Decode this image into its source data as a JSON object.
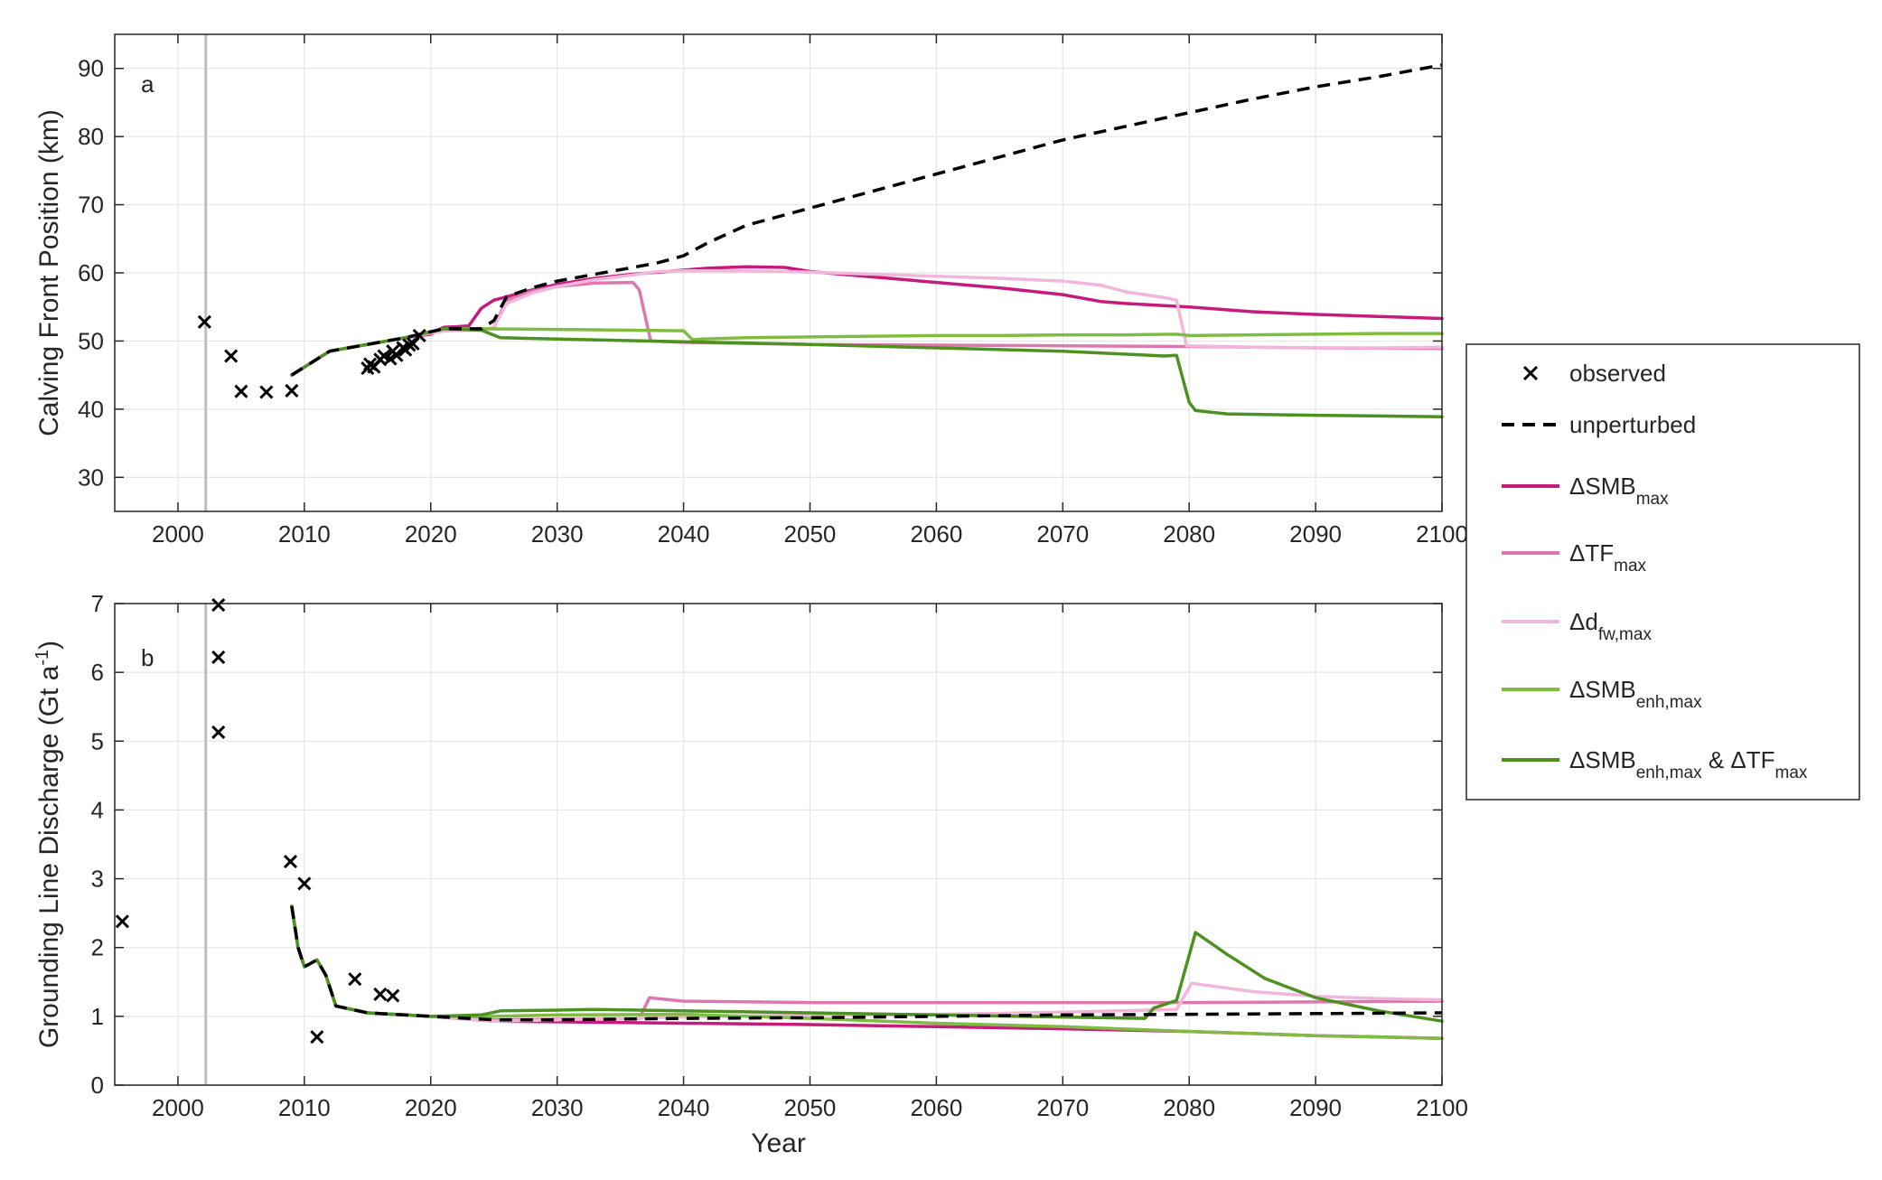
{
  "chart_data": [
    {
      "type": "line",
      "panel_label": "a",
      "xlabel": "",
      "ylabel": "Calving Front Position (km)",
      "xlim": [
        1995,
        2100
      ],
      "ylim": [
        25,
        95
      ],
      "xticks": [
        2000,
        2010,
        2020,
        2030,
        2040,
        2050,
        2060,
        2070,
        2080,
        2090,
        2100
      ],
      "yticks": [
        30,
        40,
        50,
        60,
        70,
        80,
        90
      ],
      "grid": true,
      "vertical_line_x": 2002.2,
      "observed": {
        "x": [
          2002.1,
          2004.2,
          2005.0,
          2007.0,
          2009.0,
          2015.0,
          2015.2,
          2015.5,
          2016.0,
          2016.3,
          2016.8,
          2017.0,
          2017.3,
          2017.8,
          2018.0,
          2018.3,
          2018.6,
          2019.1
        ],
        "y": [
          52.8,
          47.8,
          42.6,
          42.5,
          42.7,
          46.0,
          46.6,
          46.2,
          47.3,
          47.8,
          47.4,
          48.5,
          47.9,
          49.0,
          48.7,
          49.4,
          49.6,
          50.8
        ]
      },
      "series": [
        {
          "name": "unperturbed",
          "color": "#000000",
          "dash": true,
          "x": [
            2009,
            2012,
            2015,
            2018,
            2021,
            2024,
            2025,
            2026,
            2028,
            2030,
            2033,
            2036,
            2038,
            2040,
            2042,
            2045,
            2050,
            2055,
            2060,
            2065,
            2070,
            2075,
            2080,
            2085,
            2090,
            2095,
            2100
          ],
          "y": [
            45,
            48.5,
            49.5,
            50.5,
            51.8,
            51.8,
            53,
            56.5,
            57.8,
            58.8,
            59.8,
            60.8,
            61.5,
            62.5,
            64.5,
            67.0,
            69.5,
            72.0,
            74.5,
            77.0,
            79.5,
            81.5,
            83.5,
            85.5,
            87.3,
            88.8,
            90.5
          ]
        },
        {
          "name": "ΔSMB_max",
          "color": "#c51b7d",
          "dash": false,
          "x": [
            2009,
            2012,
            2015,
            2018,
            2020,
            2021,
            2023,
            2024,
            2025,
            2026,
            2028,
            2030,
            2033,
            2036,
            2038,
            2040,
            2042,
            2045,
            2048,
            2050,
            2055,
            2060,
            2065,
            2070,
            2073,
            2075,
            2080,
            2085,
            2090,
            2095,
            2100
          ],
          "y": [
            45,
            48.5,
            49.5,
            50.5,
            51,
            52,
            52.2,
            54.8,
            56,
            56.5,
            57.5,
            58.3,
            59.2,
            59.8,
            60.1,
            60.4,
            60.7,
            60.9,
            60.8,
            60.2,
            59.4,
            58.6,
            57.8,
            56.8,
            55.8,
            55.5,
            55.0,
            54.3,
            53.9,
            53.6,
            53.3
          ]
        },
        {
          "name": "ΔTF_max",
          "color": "#de77ae",
          "dash": false,
          "x": [
            2009,
            2012,
            2015,
            2018,
            2021,
            2024,
            2025,
            2026,
            2028,
            2030,
            2033,
            2036,
            2036.5,
            2037.4,
            2040,
            2050,
            2060,
            2070,
            2080,
            2090,
            2100
          ],
          "y": [
            45,
            48.5,
            49.5,
            50.5,
            51.5,
            51.6,
            52,
            56,
            57.3,
            58.0,
            58.5,
            58.6,
            57.5,
            50.0,
            49.8,
            49.5,
            49.4,
            49.3,
            49.2,
            49.0,
            48.9
          ]
        },
        {
          "name": "Δd_fw,max",
          "color": "#f1b6da",
          "dash": false,
          "x": [
            2009,
            2012,
            2015,
            2018,
            2021,
            2024,
            2025,
            2026,
            2028,
            2030,
            2033,
            2036,
            2038,
            2040,
            2045,
            2050,
            2055,
            2060,
            2065,
            2070,
            2073,
            2075,
            2078,
            2079,
            2079.8,
            2085,
            2090,
            2095,
            2100
          ],
          "y": [
            45,
            48.5,
            49.5,
            50.5,
            51.5,
            51.6,
            52,
            55.5,
            57,
            58,
            59,
            59.7,
            60.2,
            60.3,
            60.3,
            60.1,
            59.8,
            59.5,
            59.2,
            58.8,
            58.2,
            57.2,
            56.4,
            56.0,
            49.3,
            49.1,
            49.0,
            49.0,
            49.1
          ]
        },
        {
          "name": "ΔSMB_enh,max",
          "color": "#7fbc41",
          "dash": false,
          "x": [
            2009,
            2012,
            2015,
            2018,
            2021,
            2024,
            2030,
            2035,
            2040,
            2040.7,
            2041.5,
            2045,
            2050,
            2055,
            2060,
            2065,
            2070,
            2075,
            2079,
            2080,
            2085,
            2090,
            2095,
            2100
          ],
          "y": [
            45,
            48.5,
            49.5,
            50.5,
            51.8,
            51.8,
            51.7,
            51.6,
            51.5,
            50.2,
            50.3,
            50.5,
            50.6,
            50.7,
            50.8,
            50.8,
            50.9,
            50.9,
            51.0,
            50.8,
            50.9,
            51.0,
            51.1,
            51.1
          ]
        },
        {
          "name": "ΔSMB_enh,max & ΔTF_max",
          "color": "#4d9221",
          "dash": false,
          "x": [
            2009,
            2012,
            2015,
            2018,
            2021,
            2024,
            2025.5,
            2030,
            2040,
            2050,
            2060,
            2070,
            2078,
            2079,
            2080,
            2080.5,
            2083,
            2090,
            2095,
            2100
          ],
          "y": [
            45,
            48.5,
            49.5,
            50.5,
            51.8,
            51.6,
            50.5,
            50.3,
            49.9,
            49.5,
            49.0,
            48.5,
            47.8,
            47.9,
            41.0,
            39.8,
            39.3,
            39.1,
            39.0,
            38.9
          ]
        }
      ]
    },
    {
      "type": "line",
      "panel_label": "b",
      "xlabel": "Year",
      "ylabel": "Grounding Line Discharge (Gt a",
      "ylabel_sup": "-1",
      "ylabel_end": ")",
      "xlim": [
        1995,
        2100
      ],
      "ylim": [
        0,
        7
      ],
      "xticks": [
        2000,
        2010,
        2020,
        2030,
        2040,
        2050,
        2060,
        2070,
        2080,
        2090,
        2100
      ],
      "yticks": [
        0,
        1,
        2,
        3,
        4,
        5,
        6,
        7
      ],
      "grid": true,
      "vertical_line_x": 2002.2,
      "observed": {
        "x": [
          1995.6,
          2003.2,
          2003.2,
          2003.2,
          2008.9,
          2010.0,
          2011.0,
          2014.0,
          2016.0,
          2017.0
        ],
        "y": [
          2.38,
          6.98,
          6.22,
          5.13,
          3.25,
          2.93,
          0.7,
          1.54,
          1.32,
          1.3
        ]
      },
      "series": [
        {
          "name": "unperturbed",
          "color": "#000000",
          "dash": true,
          "x": [
            2009,
            2009.5,
            2010,
            2011,
            2011.7,
            2012.5,
            2015,
            2020,
            2025,
            2030,
            2040,
            2050,
            2060,
            2070,
            2080,
            2090,
            2100
          ],
          "y": [
            2.6,
            2.0,
            1.72,
            1.82,
            1.6,
            1.15,
            1.05,
            1.0,
            0.95,
            0.95,
            0.97,
            0.98,
            1.0,
            1.02,
            1.03,
            1.04,
            1.05
          ]
        },
        {
          "name": "ΔSMB_max",
          "color": "#c51b7d",
          "dash": false,
          "x": [
            2009,
            2009.5,
            2010,
            2011,
            2011.7,
            2012.5,
            2015,
            2020,
            2025,
            2030,
            2040,
            2050,
            2060,
            2070,
            2080,
            2090,
            2100
          ],
          "y": [
            2.6,
            2.0,
            1.72,
            1.82,
            1.6,
            1.15,
            1.05,
            1.0,
            0.93,
            0.92,
            0.9,
            0.88,
            0.85,
            0.82,
            0.78,
            0.72,
            0.68
          ]
        },
        {
          "name": "ΔTF_max",
          "color": "#de77ae",
          "dash": false,
          "x": [
            2009,
            2009.5,
            2010,
            2011,
            2011.7,
            2012.5,
            2015,
            2020,
            2025,
            2030,
            2036.5,
            2037.3,
            2040,
            2050,
            2060,
            2070,
            2080,
            2090,
            2100
          ],
          "y": [
            2.6,
            2.0,
            1.72,
            1.82,
            1.6,
            1.15,
            1.05,
            1.0,
            0.95,
            0.96,
            0.97,
            1.27,
            1.22,
            1.2,
            1.2,
            1.2,
            1.2,
            1.21,
            1.22
          ]
        },
        {
          "name": "Δd_fw,max",
          "color": "#f1b6da",
          "dash": false,
          "x": [
            2009,
            2009.5,
            2010,
            2011,
            2011.7,
            2012.5,
            2015,
            2020,
            2025,
            2030,
            2040,
            2050,
            2060,
            2070,
            2079,
            2080.2,
            2085,
            2090,
            2095,
            2100
          ],
          "y": [
            2.6,
            2.0,
            1.72,
            1.82,
            1.6,
            1.15,
            1.05,
            1.0,
            0.93,
            0.95,
            0.99,
            1.02,
            1.03,
            1.06,
            1.1,
            1.48,
            1.36,
            1.29,
            1.26,
            1.24
          ]
        },
        {
          "name": "ΔSMB_enh,max",
          "color": "#7fbc41",
          "dash": false,
          "x": [
            2009,
            2009.5,
            2010,
            2011,
            2011.7,
            2012.5,
            2015,
            2020,
            2025,
            2030,
            2040,
            2050,
            2060,
            2070,
            2080,
            2090,
            2100
          ],
          "y": [
            2.6,
            2.0,
            1.72,
            1.82,
            1.6,
            1.15,
            1.05,
            1.0,
            1.0,
            1.02,
            1.03,
            0.97,
            0.9,
            0.85,
            0.78,
            0.72,
            0.68
          ]
        },
        {
          "name": "ΔSMB_enh,max & ΔTF_max",
          "color": "#4d9221",
          "dash": false,
          "x": [
            2009,
            2009.5,
            2010,
            2011,
            2011.7,
            2012.5,
            2015,
            2020,
            2024,
            2025.5,
            2030,
            2033,
            2040,
            2050,
            2060,
            2070,
            2076.5,
            2077.2,
            2079,
            2080.5,
            2083,
            2086,
            2090,
            2095,
            2100
          ],
          "y": [
            2.6,
            2.0,
            1.72,
            1.82,
            1.6,
            1.15,
            1.05,
            1.0,
            1.02,
            1.08,
            1.09,
            1.1,
            1.08,
            1.05,
            1.02,
            0.99,
            0.97,
            1.12,
            1.23,
            2.22,
            1.9,
            1.55,
            1.27,
            1.08,
            0.93
          ]
        }
      ]
    }
  ],
  "legend": {
    "placement": "right",
    "items": [
      {
        "type": "marker",
        "color": "#000000",
        "label": "observed",
        "sub": "",
        "label2": "",
        "sub2": ""
      },
      {
        "type": "dash",
        "color": "#000000",
        "label": "unperturbed",
        "sub": "",
        "label2": "",
        "sub2": ""
      },
      {
        "type": "line",
        "color": "#c51b7d",
        "label": "ΔSMB",
        "sub": "max",
        "label2": "",
        "sub2": ""
      },
      {
        "type": "line",
        "color": "#de77ae",
        "label": "ΔTF",
        "sub": "max",
        "label2": "",
        "sub2": ""
      },
      {
        "type": "line",
        "color": "#f1b6da",
        "label": "Δd",
        "sub": "fw,max",
        "label2": "",
        "sub2": ""
      },
      {
        "type": "line",
        "color": "#7fbc41",
        "label": "ΔSMB",
        "sub": "enh,max",
        "label2": "",
        "sub2": ""
      },
      {
        "type": "line",
        "color": "#4d9221",
        "label": "ΔSMB",
        "sub": "enh,max",
        "label2": " & ΔTF",
        "sub2": "max"
      }
    ]
  }
}
